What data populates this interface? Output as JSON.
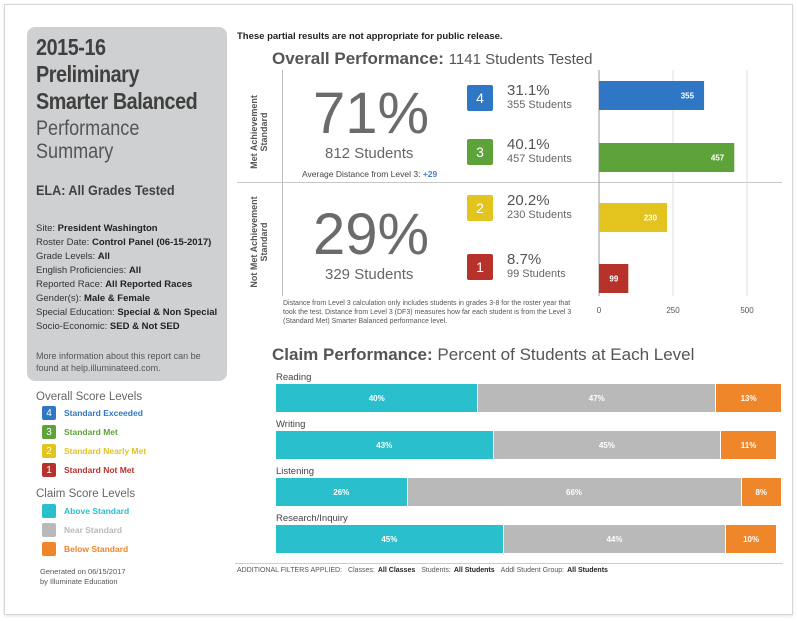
{
  "sidebar": {
    "title_bold": "2015-16 Preliminary Smarter Balanced",
    "title_light": "Performance Summary",
    "subject": "ELA: All Grades Tested",
    "meta": [
      {
        "label": "Site: ",
        "value": "President Washington"
      },
      {
        "label": "Roster Date: ",
        "value": "Control Panel (06-15-2017)"
      },
      {
        "label": "Grade Levels: ",
        "value": "All"
      },
      {
        "label": "English Proficiencies: ",
        "value": "All"
      },
      {
        "label": "Reported Race: ",
        "value": "All Reported Races"
      },
      {
        "label": "Gender(s): ",
        "value": "Male & Female"
      },
      {
        "label": "Special Education: ",
        "value": "Special & Non Special"
      },
      {
        "label": "Socio-Economic: ",
        "value": "SED & Not SED"
      }
    ],
    "more_info": "More information about this report can be found at help.illuminateed.com.",
    "overall_levels_title": "Overall Score Levels",
    "overall_levels": [
      {
        "num": "4",
        "label": "Standard Exceeded",
        "color": "#2f77c4"
      },
      {
        "num": "3",
        "label": "Standard Met",
        "color": "#5ea33a"
      },
      {
        "num": "2",
        "label": "Standard Nearly Met",
        "color": "#e3c31e"
      },
      {
        "num": "1",
        "label": "Standard Not Met",
        "color": "#b7322b"
      }
    ],
    "claim_levels_title": "Claim Score Levels",
    "claim_levels": [
      {
        "label": "Above Standard",
        "color": "#29bfcc"
      },
      {
        "label": "Near Standard",
        "color": "#b9b9b9"
      },
      {
        "label": "Below Standard",
        "color": "#f0862a"
      }
    ],
    "generated": "Generated on 06/15/2017",
    "generated_by": "by Illuminate Education"
  },
  "main": {
    "disclaimer": "These partial results are not appropriate for public release.",
    "overall_title": "Overall Performance:",
    "overall_subtitle": "1141 Students Tested",
    "met_label": "Met Achievement Standard",
    "notmet_label": "Not Met Achievement Standard",
    "met_pct": "71%",
    "met_count": "812 Students",
    "avg_distance_label": "Average Distance from Level 3:",
    "avg_distance_value": "+29",
    "notmet_pct": "29%",
    "notmet_count": "329 Students",
    "levels": [
      {
        "num": "4",
        "pct": "31.1%",
        "count": "355 Students",
        "color": "#2f77c4"
      },
      {
        "num": "3",
        "pct": "40.1%",
        "count": "457 Students",
        "color": "#5ea33a"
      },
      {
        "num": "2",
        "pct": "20.2%",
        "count": "230 Students",
        "color": "#e3c31e"
      },
      {
        "num": "1",
        "pct": "8.7%",
        "count": "99 Students",
        "color": "#b7322b"
      }
    ],
    "footnote": "Distance from Level 3 calculation only includes students in grades 3-8 for the roster year that took the test. Distance from Level 3 (DF3) measures how far each student is from the Level 3 (Standard Met) Smarter Balanced performance level.",
    "claim_title": "Claim Performance:",
    "claim_subtitle": "Percent of Students at Each Level",
    "filters_label": "ADDITIONAL FILTERS APPLIED:",
    "filters": [
      {
        "label": "Classes:",
        "value": "All Classes"
      },
      {
        "label": "Students:",
        "value": "All Students"
      },
      {
        "label": "Addl Student Group:",
        "value": "All Students"
      }
    ]
  },
  "chart_data": [
    {
      "type": "bar",
      "orientation": "horizontal",
      "categories": [
        "4",
        "3",
        "2",
        "1"
      ],
      "values": [
        355,
        457,
        230,
        99
      ],
      "colors": [
        "#2f77c4",
        "#5ea33a",
        "#e3c31e",
        "#b7322b"
      ],
      "xlim": [
        0,
        500
      ],
      "xticks": [
        0,
        250,
        500
      ],
      "grid": true
    },
    {
      "type": "bar",
      "orientation": "horizontal",
      "stacked": true,
      "categories": [
        "Reading",
        "Writing",
        "Listening",
        "Research/Inquiry"
      ],
      "series": [
        {
          "name": "Above Standard",
          "values": [
            40,
            43,
            26,
            45
          ],
          "color": "#29bfcc"
        },
        {
          "name": "Near Standard",
          "values": [
            47,
            45,
            66,
            44
          ],
          "color": "#b9b9b9"
        },
        {
          "name": "Below Standard",
          "values": [
            13,
            11,
            8,
            10
          ],
          "color": "#f0862a"
        }
      ],
      "xlim": [
        0,
        100
      ]
    }
  ]
}
